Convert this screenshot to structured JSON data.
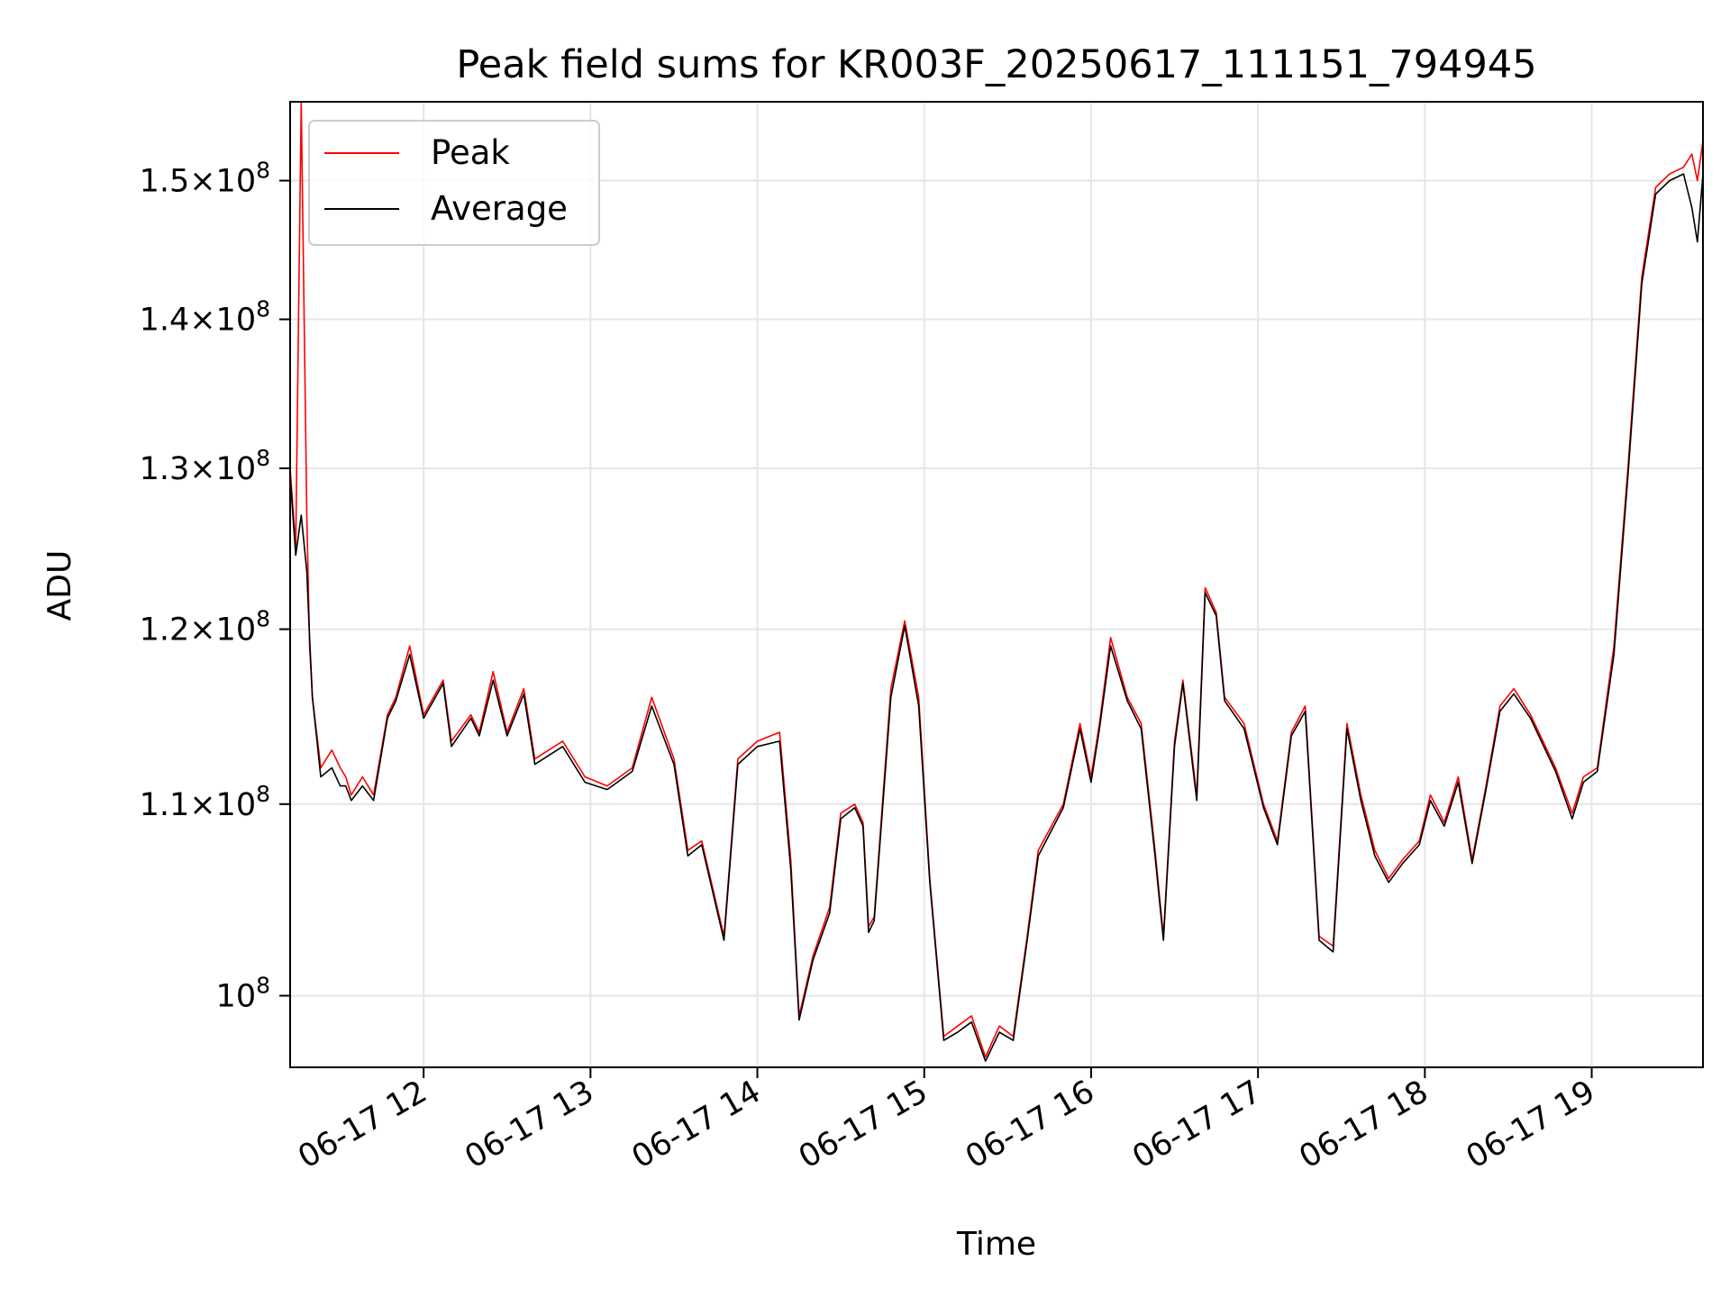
{
  "chart_data": {
    "type": "line",
    "title": "Peak field sums for KR003F_20250617_111151_794945",
    "xlabel": "Time",
    "ylabel": "ADU",
    "yscale": "log",
    "grid": true,
    "legend_position": "top-left",
    "xlim": [
      "06-17 11:12",
      "06-17 19:40"
    ],
    "ylim": [
      96500000,
      156000000
    ],
    "x_ticks": [
      "06-17 12",
      "06-17 13",
      "06-17 14",
      "06-17 15",
      "06-17 16",
      "06-17 17",
      "06-17 18",
      "06-17 19"
    ],
    "y_ticks": [
      {
        "value": 100000000,
        "mantissa": "",
        "base": "10",
        "exp": "8"
      },
      {
        "value": 110000000,
        "mantissa": "1.1",
        "base": "10",
        "exp": "8"
      },
      {
        "value": 120000000,
        "mantissa": "1.2",
        "base": "10",
        "exp": "8"
      },
      {
        "value": 130000000,
        "mantissa": "1.3",
        "base": "10",
        "exp": "8"
      },
      {
        "value": 140000000,
        "mantissa": "1.4",
        "base": "10",
        "exp": "8"
      },
      {
        "value": 150000000,
        "mantissa": "1.5",
        "base": "10",
        "exp": "8"
      }
    ],
    "series": [
      {
        "name": "Peak",
        "color": "#ff0000",
        "x": [
          "06-17 11:12",
          "06-17 11:14",
          "06-17 11:16",
          "06-17 11:18",
          "06-17 11:19",
          "06-17 11:20",
          "06-17 11:23",
          "06-17 11:27",
          "06-17 11:30",
          "06-17 11:32",
          "06-17 11:34",
          "06-17 11:38",
          "06-17 11:42",
          "06-17 11:47",
          "06-17 11:50",
          "06-17 11:55",
          "06-17 12:00",
          "06-17 12:07",
          "06-17 12:10",
          "06-17 12:17",
          "06-17 12:20",
          "06-17 12:25",
          "06-17 12:30",
          "06-17 12:36",
          "06-17 12:40",
          "06-17 12:50",
          "06-17 12:58",
          "06-17 13:06",
          "06-17 13:15",
          "06-17 13:22",
          "06-17 13:30",
          "06-17 13:35",
          "06-17 13:40",
          "06-17 13:48",
          "06-17 13:53",
          "06-17 14:00",
          "06-17 14:08",
          "06-17 14:12",
          "06-17 14:15",
          "06-17 14:20",
          "06-17 14:26",
          "06-17 14:30",
          "06-17 14:35",
          "06-17 14:38",
          "06-17 14:40",
          "06-17 14:42",
          "06-17 14:48",
          "06-17 14:53",
          "06-17 14:58",
          "06-17 15:02",
          "06-17 15:07",
          "06-17 15:12",
          "06-17 15:17",
          "06-17 15:22",
          "06-17 15:27",
          "06-17 15:32",
          "06-17 15:37",
          "06-17 15:41",
          "06-17 15:50",
          "06-17 15:56",
          "06-17 16:00",
          "06-17 16:03",
          "06-17 16:07",
          "06-17 16:13",
          "06-17 16:18",
          "06-17 16:23",
          "06-17 16:26",
          "06-17 16:30",
          "06-17 16:33",
          "06-17 16:38",
          "06-17 16:41",
          "06-17 16:45",
          "06-17 16:48",
          "06-17 16:55",
          "06-17 17:02",
          "06-17 17:07",
          "06-17 17:12",
          "06-17 17:17",
          "06-17 17:22",
          "06-17 17:27",
          "06-17 17:32",
          "06-17 17:37",
          "06-17 17:42",
          "06-17 17:47",
          "06-17 17:52",
          "06-17 17:58",
          "06-17 18:02",
          "06-17 18:07",
          "06-17 18:12",
          "06-17 18:17",
          "06-17 18:22",
          "06-17 18:27",
          "06-17 18:32",
          "06-17 18:38",
          "06-17 18:47",
          "06-17 18:53",
          "06-17 18:57",
          "06-17 19:02",
          "06-17 19:08",
          "06-17 19:13",
          "06-17 19:18",
          "06-17 19:23",
          "06-17 19:28",
          "06-17 19:33",
          "06-17 19:36",
          "06-17 19:38",
          "06-17 19:40"
        ],
        "values": [
          130000000,
          125000000,
          156000000,
          127000000,
          119000000,
          116000000,
          112000000,
          113000000,
          112000000,
          111500000,
          110500000,
          111500000,
          110500000,
          115000000,
          116000000,
          119000000,
          115000000,
          117000000,
          113500000,
          115000000,
          114000000,
          117500000,
          114000000,
          116500000,
          112500000,
          113500000,
          111500000,
          111000000,
          112000000,
          116000000,
          112500000,
          107500000,
          108000000,
          103000000,
          112500000,
          113500000,
          114000000,
          107000000,
          99000000,
          102000000,
          104500000,
          109500000,
          110000000,
          109000000,
          103500000,
          104000000,
          116500000,
          120500000,
          116000000,
          106000000,
          98000000,
          98500000,
          99000000,
          97000000,
          98500000,
          98000000,
          103000000,
          107500000,
          110000000,
          114500000,
          111500000,
          114500000,
          119500000,
          116000000,
          114500000,
          107500000,
          103000000,
          113500000,
          117000000,
          110500000,
          122500000,
          121000000,
          116000000,
          114500000,
          110000000,
          108000000,
          114000000,
          115500000,
          103000000,
          102500000,
          114500000,
          110500000,
          107500000,
          106000000,
          107000000,
          108000000,
          110500000,
          109000000,
          111500000,
          107000000,
          111000000,
          115500000,
          116500000,
          115000000,
          112000000,
          109500000,
          111500000,
          112000000,
          119000000,
          130000000,
          143000000,
          149500000,
          150500000,
          151000000,
          152000000,
          150000000,
          153000000
        ]
      },
      {
        "name": "Average",
        "color": "#000000",
        "x": [
          "06-17 11:12",
          "06-17 11:14",
          "06-17 11:16",
          "06-17 11:18",
          "06-17 11:19",
          "06-17 11:20",
          "06-17 11:23",
          "06-17 11:27",
          "06-17 11:30",
          "06-17 11:32",
          "06-17 11:34",
          "06-17 11:38",
          "06-17 11:42",
          "06-17 11:47",
          "06-17 11:50",
          "06-17 11:55",
          "06-17 12:00",
          "06-17 12:07",
          "06-17 12:10",
          "06-17 12:17",
          "06-17 12:20",
          "06-17 12:25",
          "06-17 12:30",
          "06-17 12:36",
          "06-17 12:40",
          "06-17 12:50",
          "06-17 12:58",
          "06-17 13:06",
          "06-17 13:15",
          "06-17 13:22",
          "06-17 13:30",
          "06-17 13:35",
          "06-17 13:40",
          "06-17 13:48",
          "06-17 13:53",
          "06-17 14:00",
          "06-17 14:08",
          "06-17 14:12",
          "06-17 14:15",
          "06-17 14:20",
          "06-17 14:26",
          "06-17 14:30",
          "06-17 14:35",
          "06-17 14:38",
          "06-17 14:40",
          "06-17 14:42",
          "06-17 14:48",
          "06-17 14:53",
          "06-17 14:58",
          "06-17 15:02",
          "06-17 15:07",
          "06-17 15:12",
          "06-17 15:17",
          "06-17 15:22",
          "06-17 15:27",
          "06-17 15:32",
          "06-17 15:37",
          "06-17 15:41",
          "06-17 15:50",
          "06-17 15:56",
          "06-17 16:00",
          "06-17 16:03",
          "06-17 16:07",
          "06-17 16:13",
          "06-17 16:18",
          "06-17 16:23",
          "06-17 16:26",
          "06-17 16:30",
          "06-17 16:33",
          "06-17 16:38",
          "06-17 16:41",
          "06-17 16:45",
          "06-17 16:48",
          "06-17 16:55",
          "06-17 17:02",
          "06-17 17:07",
          "06-17 17:12",
          "06-17 17:17",
          "06-17 17:22",
          "06-17 17:27",
          "06-17 17:32",
          "06-17 17:37",
          "06-17 17:42",
          "06-17 17:47",
          "06-17 17:52",
          "06-17 17:58",
          "06-17 18:02",
          "06-17 18:07",
          "06-17 18:12",
          "06-17 18:17",
          "06-17 18:22",
          "06-17 18:27",
          "06-17 18:32",
          "06-17 18:38",
          "06-17 18:47",
          "06-17 18:53",
          "06-17 18:57",
          "06-17 19:02",
          "06-17 19:08",
          "06-17 19:13",
          "06-17 19:18",
          "06-17 19:23",
          "06-17 19:28",
          "06-17 19:33",
          "06-17 19:36",
          "06-17 19:38",
          "06-17 19:40"
        ],
        "values": [
          129500000,
          124500000,
          127000000,
          123500000,
          119500000,
          116000000,
          111500000,
          112000000,
          111000000,
          111000000,
          110200000,
          111000000,
          110200000,
          114800000,
          115800000,
          118500000,
          114800000,
          116800000,
          113200000,
          114800000,
          113800000,
          117000000,
          113800000,
          116200000,
          112200000,
          113200000,
          111200000,
          110800000,
          111800000,
          115500000,
          112200000,
          107200000,
          107800000,
          102800000,
          112200000,
          113200000,
          113500000,
          106500000,
          98800000,
          101800000,
          104200000,
          109200000,
          109800000,
          108800000,
          103200000,
          103800000,
          116000000,
          120200000,
          115500000,
          105800000,
          97800000,
          98200000,
          98700000,
          96800000,
          98200000,
          97800000,
          102800000,
          107200000,
          109800000,
          114200000,
          111200000,
          114200000,
          119000000,
          115800000,
          114200000,
          107200000,
          102800000,
          113200000,
          116800000,
          110200000,
          122200000,
          120800000,
          115800000,
          114200000,
          109800000,
          107800000,
          113800000,
          115200000,
          102800000,
          102200000,
          114200000,
          110200000,
          107200000,
          105800000,
          106800000,
          107800000,
          110200000,
          108800000,
          111200000,
          106800000,
          110800000,
          115200000,
          116200000,
          114800000,
          111800000,
          109200000,
          111200000,
          111800000,
          118500000,
          129500000,
          142500000,
          149000000,
          150000000,
          150500000,
          148000000,
          145500000,
          150500000
        ]
      }
    ]
  }
}
